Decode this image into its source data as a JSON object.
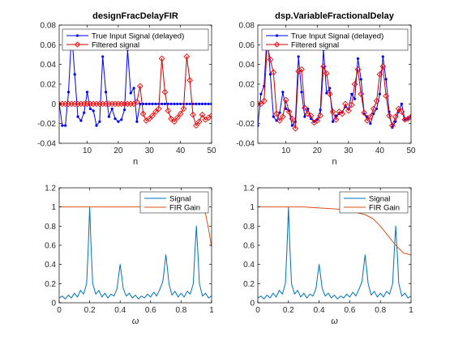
{
  "colors": {
    "true_input": "#0000ff",
    "filtered": "#cc0000",
    "filtered_marker": "#ff0000",
    "signal": "#0072bd",
    "fir_gain": "#d95319",
    "axis": "#000000",
    "background": "#ffffff"
  },
  "chart_data": [
    {
      "type": "line",
      "title": "designFracDelayFIR",
      "xlabel": "n",
      "ylabel": "",
      "xlim": [
        1,
        50
      ],
      "ylim": [
        -0.04,
        0.08
      ],
      "xticks": [
        10,
        20,
        30,
        40,
        50
      ],
      "yticks": [
        -0.04,
        -0.02,
        0,
        0.02,
        0.04,
        0.06,
        0.08
      ],
      "xtick_labels": [
        "10",
        "20",
        "30",
        "40",
        "50"
      ],
      "ytick_labels": [
        "-0.04",
        "-0.02",
        "0",
        "0.02",
        "0.04",
        "0.06",
        "0.08"
      ],
      "grid": false,
      "legend_position": "top-right",
      "series": [
        {
          "name": "True Input Signal (delayed)",
          "color": "#0000ff",
          "marker": "dot",
          "x": [
            1,
            2,
            3,
            4,
            5,
            6,
            7,
            8,
            9,
            10,
            11,
            12,
            13,
            14,
            15,
            16,
            17,
            18,
            19,
            20,
            21,
            22,
            23,
            24,
            25,
            26,
            27,
            28,
            29,
            30,
            31,
            32,
            33,
            34,
            35,
            36,
            37,
            38,
            39,
            40,
            41,
            42,
            43,
            44,
            45,
            46,
            47,
            48,
            49,
            50
          ],
          "y": [
            0.0,
            -0.022,
            -0.022,
            0.012,
            0.073,
            0.03,
            -0.013,
            -0.017,
            -0.009,
            0.012,
            -0.005,
            -0.007,
            -0.022,
            -0.018,
            0.048,
            0.012,
            -0.013,
            -0.005,
            -0.015,
            -0.018,
            -0.016,
            -0.006,
            0.055,
            0.011,
            0.016,
            -0.018,
            0.0,
            0.0,
            0.0,
            0.0,
            0.0,
            0.0,
            0.0,
            0.0,
            0.0,
            0.0,
            0.0,
            0.0,
            0.0,
            0.0,
            0.0,
            0.0,
            0.0,
            0.0,
            0.0,
            0.0,
            0.0,
            0.0,
            0.0,
            0.0
          ]
        },
        {
          "name": "Filtered signal",
          "color": "#cc0000",
          "marker": "diamond",
          "x": [
            1,
            2,
            3,
            4,
            5,
            6,
            7,
            8,
            9,
            10,
            11,
            12,
            13,
            14,
            15,
            16,
            17,
            18,
            19,
            20,
            21,
            22,
            23,
            24,
            25,
            26,
            27,
            28,
            29,
            30,
            31,
            32,
            33,
            34,
            35,
            36,
            37,
            38,
            39,
            40,
            41,
            42,
            43,
            44,
            45,
            46,
            47,
            48,
            49,
            50
          ],
          "y": [
            0.0,
            0.0,
            0.0,
            0.0,
            0.0,
            0.0,
            0.0,
            0.0,
            0.0,
            0.0,
            0.0,
            0.0,
            0.0,
            0.0,
            0.0,
            0.0,
            0.0,
            0.0,
            0.0,
            0.0,
            0.0,
            0.0,
            0.0,
            0.0,
            0.0,
            0.002,
            0.018,
            -0.01,
            -0.017,
            -0.015,
            -0.012,
            -0.008,
            -0.005,
            0.046,
            0.012,
            -0.007,
            -0.015,
            -0.018,
            -0.014,
            -0.01,
            -0.005,
            0.048,
            0.024,
            -0.011,
            -0.022,
            -0.018,
            -0.011,
            -0.016,
            -0.014,
            -0.012
          ]
        }
      ]
    },
    {
      "type": "line",
      "title": "dsp.VariableFractionalDelay",
      "xlabel": "n",
      "ylabel": "",
      "xlim": [
        1,
        50
      ],
      "ylim": [
        -0.04,
        0.08
      ],
      "xticks": [
        10,
        20,
        30,
        40,
        50
      ],
      "yticks": [
        -0.04,
        -0.02,
        0,
        0.02,
        0.04,
        0.06,
        0.08
      ],
      "xtick_labels": [
        "10",
        "20",
        "30",
        "40",
        "50"
      ],
      "ytick_labels": [
        "-0.04",
        "-0.02",
        "0",
        "0.02",
        "0.04",
        "0.06",
        "0.08"
      ],
      "grid": false,
      "legend_position": "top-right",
      "series": [
        {
          "name": "True Input Signal (delayed)",
          "color": "#0000ff",
          "marker": "dot",
          "x": [
            1,
            2,
            3,
            4,
            5,
            6,
            7,
            8,
            9,
            10,
            11,
            12,
            13,
            14,
            15,
            16,
            17,
            18,
            19,
            20,
            21,
            22,
            23,
            24,
            25,
            26,
            27,
            28,
            29,
            30,
            31,
            32,
            33,
            34,
            35,
            36,
            37,
            38,
            39,
            40,
            41,
            42,
            43,
            44,
            45,
            46,
            47,
            48,
            49,
            50
          ],
          "y": [
            -0.022,
            0.01,
            0.018,
            0.073,
            0.03,
            -0.013,
            -0.017,
            -0.009,
            0.012,
            -0.005,
            -0.007,
            -0.022,
            -0.018,
            0.048,
            0.012,
            -0.013,
            -0.005,
            -0.015,
            -0.018,
            -0.016,
            -0.006,
            0.055,
            0.011,
            0.016,
            -0.018,
            -0.012,
            -0.01,
            -0.008,
            -0.003,
            -0.005,
            0.01,
            0.005,
            0.046,
            0.025,
            -0.01,
            -0.013,
            -0.02,
            -0.01,
            -0.005,
            0.01,
            0.048,
            0.025,
            -0.008,
            -0.024,
            -0.018,
            -0.008,
            0.0,
            -0.016,
            -0.015,
            -0.013
          ]
        },
        {
          "name": "Filtered signal",
          "color": "#cc0000",
          "marker": "diamond",
          "x": [
            1,
            2,
            3,
            4,
            5,
            6,
            7,
            8,
            9,
            10,
            11,
            12,
            13,
            14,
            15,
            16,
            17,
            18,
            19,
            20,
            21,
            22,
            23,
            24,
            25,
            26,
            27,
            28,
            29,
            30,
            31,
            32,
            33,
            34,
            35,
            36,
            37,
            38,
            39,
            40,
            41,
            42,
            43,
            44,
            45,
            46,
            47,
            48,
            49,
            50
          ],
          "y": [
            0.0,
            0.0,
            0.003,
            0.06,
            0.045,
            0.032,
            -0.01,
            -0.017,
            -0.013,
            0.004,
            -0.008,
            -0.015,
            -0.025,
            0.033,
            0.035,
            -0.004,
            -0.01,
            -0.012,
            -0.019,
            -0.017,
            -0.012,
            0.038,
            0.031,
            0.01,
            -0.008,
            -0.016,
            -0.008,
            -0.01,
            0.0,
            -0.007,
            -0.001,
            0.02,
            0.035,
            0.01,
            -0.009,
            -0.017,
            -0.013,
            -0.005,
            0.003,
            0.03,
            0.038,
            0.008,
            -0.012,
            -0.022,
            -0.013,
            -0.005,
            -0.008,
            -0.016,
            -0.015,
            -0.013
          ]
        }
      ]
    },
    {
      "type": "line",
      "title": "",
      "xlabel": "ω",
      "ylabel": "",
      "xlim": [
        0,
        1
      ],
      "ylim": [
        0,
        1.2
      ],
      "xticks": [
        0,
        0.2,
        0.4,
        0.6,
        0.8,
        1
      ],
      "yticks": [
        0,
        0.2,
        0.4,
        0.6,
        0.8,
        1,
        1.2
      ],
      "xtick_labels": [
        "0",
        "0.2",
        "0.4",
        "0.6",
        "0.8",
        "1"
      ],
      "ytick_labels": [
        "0",
        "0.2",
        "0.4",
        "0.6",
        "0.8",
        "1",
        "1.2"
      ],
      "grid": false,
      "legend_position": "top-right",
      "peaks": [
        [
          0.2,
          1.0
        ],
        [
          0.4,
          0.4
        ],
        [
          0.7,
          0.5
        ],
        [
          0.9,
          0.8
        ]
      ],
      "series": [
        {
          "name": "Signal",
          "color": "#0072bd",
          "x": [
            0,
            0.02,
            0.04,
            0.06,
            0.08,
            0.1,
            0.12,
            0.14,
            0.16,
            0.18,
            0.19,
            0.2,
            0.21,
            0.22,
            0.24,
            0.26,
            0.28,
            0.3,
            0.32,
            0.34,
            0.36,
            0.38,
            0.39,
            0.4,
            0.41,
            0.42,
            0.44,
            0.46,
            0.48,
            0.5,
            0.52,
            0.54,
            0.56,
            0.58,
            0.6,
            0.62,
            0.64,
            0.66,
            0.68,
            0.69,
            0.7,
            0.71,
            0.72,
            0.74,
            0.76,
            0.78,
            0.8,
            0.82,
            0.84,
            0.86,
            0.88,
            0.89,
            0.9,
            0.91,
            0.92,
            0.94,
            0.96,
            0.98,
            1
          ],
          "y": [
            0.05,
            0.07,
            0.04,
            0.08,
            0.05,
            0.1,
            0.06,
            0.13,
            0.09,
            0.2,
            0.55,
            1.0,
            0.55,
            0.2,
            0.09,
            0.13,
            0.06,
            0.1,
            0.05,
            0.09,
            0.07,
            0.15,
            0.28,
            0.4,
            0.28,
            0.15,
            0.07,
            0.1,
            0.05,
            0.08,
            0.04,
            0.07,
            0.05,
            0.09,
            0.06,
            0.11,
            0.07,
            0.14,
            0.22,
            0.36,
            0.5,
            0.36,
            0.2,
            0.08,
            0.12,
            0.06,
            0.1,
            0.06,
            0.12,
            0.09,
            0.2,
            0.52,
            0.8,
            0.52,
            0.2,
            0.07,
            0.1,
            0.05,
            0.07
          ]
        },
        {
          "name": "FIR Gain",
          "color": "#d95319",
          "x": [
            0,
            0.1,
            0.2,
            0.3,
            0.4,
            0.5,
            0.6,
            0.7,
            0.8,
            0.85,
            0.9,
            0.94,
            0.96,
            0.98,
            1
          ],
          "y": [
            1.0,
            1.0,
            1.0,
            1.0,
            1.0,
            1.0,
            1.0,
            1.0,
            1.0,
            1.0,
            1.0,
            0.99,
            0.93,
            0.77,
            0.58
          ]
        }
      ]
    },
    {
      "type": "line",
      "title": "",
      "xlabel": "ω",
      "ylabel": "",
      "xlim": [
        0,
        1
      ],
      "ylim": [
        0,
        1.2
      ],
      "xticks": [
        0,
        0.2,
        0.4,
        0.6,
        0.8,
        1
      ],
      "yticks": [
        0,
        0.2,
        0.4,
        0.6,
        0.8,
        1,
        1.2
      ],
      "xtick_labels": [
        "0",
        "0.2",
        "0.4",
        "0.6",
        "0.8",
        "1"
      ],
      "ytick_labels": [
        "0",
        "0.2",
        "0.4",
        "0.6",
        "0.8",
        "1",
        "1.2"
      ],
      "grid": false,
      "legend_position": "top-right",
      "series": [
        {
          "name": "Signal",
          "color": "#0072bd",
          "x": [
            0,
            0.02,
            0.04,
            0.06,
            0.08,
            0.1,
            0.12,
            0.14,
            0.16,
            0.18,
            0.19,
            0.2,
            0.21,
            0.22,
            0.24,
            0.26,
            0.28,
            0.3,
            0.32,
            0.34,
            0.36,
            0.38,
            0.39,
            0.4,
            0.41,
            0.42,
            0.44,
            0.46,
            0.48,
            0.5,
            0.52,
            0.54,
            0.56,
            0.58,
            0.6,
            0.62,
            0.64,
            0.66,
            0.68,
            0.69,
            0.7,
            0.71,
            0.72,
            0.74,
            0.76,
            0.78,
            0.8,
            0.82,
            0.84,
            0.86,
            0.88,
            0.89,
            0.9,
            0.91,
            0.92,
            0.94,
            0.96,
            0.98,
            1
          ],
          "y": [
            0.05,
            0.07,
            0.04,
            0.08,
            0.05,
            0.1,
            0.06,
            0.13,
            0.09,
            0.2,
            0.55,
            1.0,
            0.55,
            0.2,
            0.09,
            0.13,
            0.06,
            0.1,
            0.05,
            0.09,
            0.07,
            0.15,
            0.28,
            0.4,
            0.28,
            0.15,
            0.07,
            0.1,
            0.05,
            0.08,
            0.04,
            0.07,
            0.05,
            0.09,
            0.06,
            0.11,
            0.07,
            0.14,
            0.22,
            0.36,
            0.5,
            0.36,
            0.2,
            0.08,
            0.12,
            0.06,
            0.1,
            0.06,
            0.12,
            0.09,
            0.2,
            0.52,
            0.8,
            0.52,
            0.2,
            0.07,
            0.1,
            0.05,
            0.07
          ]
        },
        {
          "name": "FIR Gain",
          "color": "#d95319",
          "x": [
            0,
            0.1,
            0.2,
            0.3,
            0.4,
            0.5,
            0.6,
            0.7,
            0.75,
            0.8,
            0.85,
            0.9,
            0.95,
            1
          ],
          "y": [
            1.0,
            1.0,
            1.0,
            1.0,
            0.99,
            0.98,
            0.96,
            0.92,
            0.88,
            0.8,
            0.7,
            0.6,
            0.52,
            0.5
          ]
        }
      ]
    }
  ]
}
